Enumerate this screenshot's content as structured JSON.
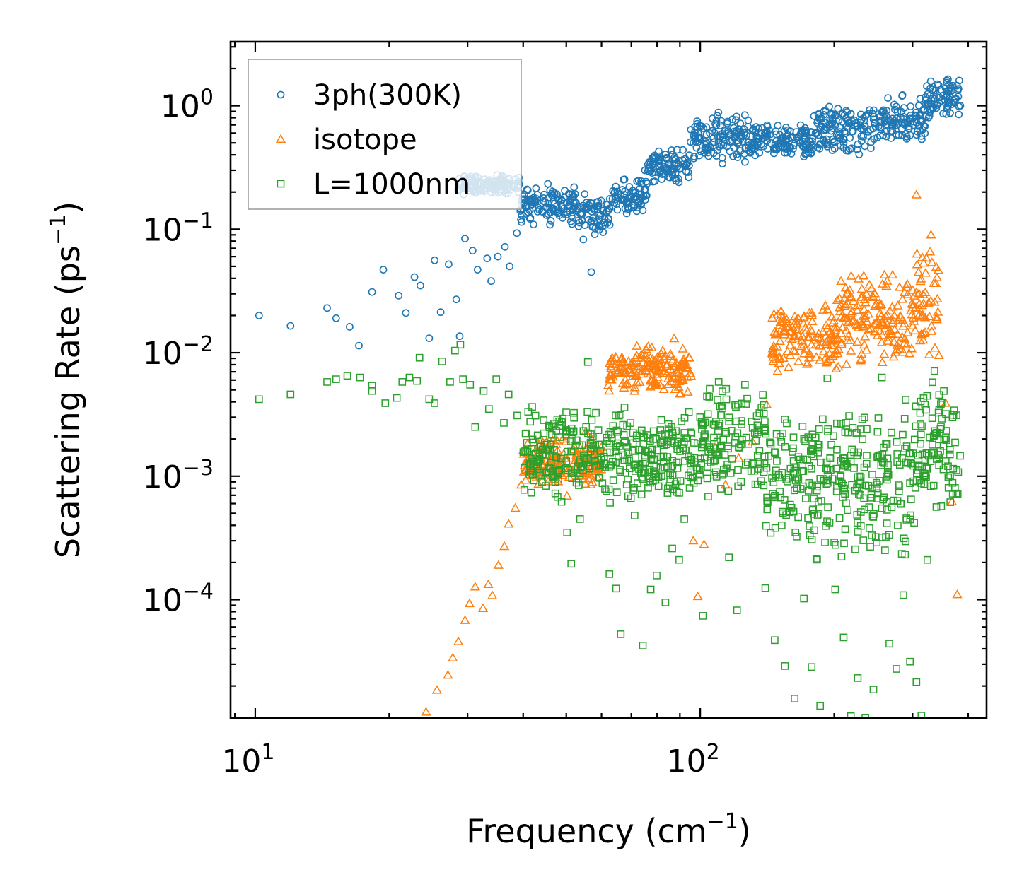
{
  "chart_data": {
    "type": "scatter",
    "title": "",
    "xscale": "log",
    "yscale": "log",
    "xlabel": {
      "main": "Frequency (cm",
      "sup": "−1",
      "close": ")"
    },
    "ylabel": {
      "main": "Scattering Rate (ps",
      "sup": "−1",
      "close": ")"
    },
    "xlim": [
      8.8,
      440
    ],
    "ylim": [
      1.1e-05,
      3.3
    ],
    "x_major_ticks": [
      {
        "value": 10,
        "base": "10",
        "exp": "1"
      },
      {
        "value": 100,
        "base": "10",
        "exp": "2"
      }
    ],
    "y_major_ticks": [
      {
        "value": 1,
        "base": "10",
        "exp": "0"
      },
      {
        "value": 0.1,
        "base": "10",
        "exp": "−1"
      },
      {
        "value": 0.01,
        "base": "10",
        "exp": "−2"
      },
      {
        "value": 0.001,
        "base": "10",
        "exp": "−3"
      },
      {
        "value": 0.0001,
        "base": "10",
        "exp": "−4"
      }
    ],
    "legend_position": "top-left",
    "series": [
      {
        "name": "3ph(300K)",
        "marker": "circle",
        "color": "#1f77b4",
        "points": [
          [
            10.2,
            0.02
          ],
          [
            12,
            0.0165
          ],
          [
            14.5,
            0.023
          ],
          [
            15.2,
            0.019
          ],
          [
            16.3,
            0.0162
          ],
          [
            17.1,
            0.0114
          ],
          [
            18.3,
            0.031
          ],
          [
            19.4,
            0.047
          ],
          [
            21,
            0.029
          ],
          [
            21.8,
            0.021
          ],
          [
            22.8,
            0.041
          ],
          [
            23.5,
            0.035
          ],
          [
            24.6,
            0.0131
          ],
          [
            25.3,
            0.056
          ],
          [
            26.1,
            0.0213
          ],
          [
            27.2,
            0.052
          ],
          [
            28.3,
            0.027
          ],
          [
            28.8,
            0.0136
          ],
          [
            29.6,
            0.084
          ],
          [
            30.8,
            0.067
          ],
          [
            31.6,
            0.047
          ],
          [
            33.2,
            0.058
          ],
          [
            33.9,
            0.038
          ],
          [
            35.1,
            0.06
          ],
          [
            36.4,
            0.072
          ],
          [
            37.3,
            0.05
          ],
          [
            38.7,
            0.093
          ],
          [
            40.8,
            0.21
          ],
          [
            42.3,
            0.18
          ],
          [
            45.1,
            0.15
          ],
          [
            48.2,
            0.13
          ],
          [
            51.5,
            0.11
          ],
          [
            54.6,
            0.0825
          ],
          [
            56.9,
            0.045
          ],
          [
            60.4,
            0.14
          ],
          [
            64.8,
            0.16
          ],
          [
            69.3,
            0.22
          ],
          [
            75.1,
            0.3
          ],
          [
            81,
            0.39
          ],
          [
            88.7,
            0.44
          ],
          [
            96.5,
            0.5
          ],
          [
            105,
            0.6
          ],
          [
            115,
            0.72
          ],
          [
            126,
            0.84
          ],
          [
            138,
            0.66
          ],
          [
            151,
            0.58
          ],
          [
            166,
            0.56
          ],
          [
            182,
            0.6
          ],
          [
            198,
            0.72
          ],
          [
            218,
            0.86
          ],
          [
            240,
            0.92
          ],
          [
            262,
            0.82
          ],
          [
            287,
            0.96
          ],
          [
            312,
            1.14
          ],
          [
            338,
            1.33
          ],
          [
            362,
            1.48
          ],
          [
            382,
            1.6
          ]
        ],
        "bands": [
          {
            "x": [
              28.5,
              39.4
            ],
            "lower": 0.18,
            "upper": 0.29
          },
          {
            "x": [
              39.4,
              52.5
            ],
            "lower": 0.1,
            "upper": 0.25
          },
          {
            "x": [
              52.5,
              63
            ],
            "lower": 0.085,
            "upper": 0.21
          },
          {
            "x": [
              63,
              76
            ],
            "lower": 0.12,
            "upper": 0.29
          },
          {
            "x": [
              76,
              95
            ],
            "lower": 0.22,
            "upper": 0.47
          },
          {
            "x": [
              95,
              130
            ],
            "lower": 0.3,
            "upper": 0.95
          },
          {
            "x": [
              130,
              180
            ],
            "lower": 0.33,
            "upper": 0.78
          },
          {
            "x": [
              180,
              250
            ],
            "lower": 0.34,
            "upper": 1.16
          },
          {
            "x": [
              250,
              320
            ],
            "lower": 0.43,
            "upper": 1.29
          },
          {
            "x": [
              320,
              386
            ],
            "lower": 0.71,
            "upper": 1.82
          }
        ]
      },
      {
        "name": "isotope",
        "marker": "triangle",
        "color": "#ff7f0e",
        "points": [
          [
            24.2,
            1.23e-05
          ],
          [
            25.6,
            1.85e-05
          ],
          [
            27.1,
            2.45e-05
          ],
          [
            27.8,
            3.38e-05
          ],
          [
            28.6,
            4.58e-05
          ],
          [
            29.6,
            6.8e-05
          ],
          [
            30.3,
            9.3e-05
          ],
          [
            31.2,
            0.000127
          ],
          [
            32.5,
            8.5e-05
          ],
          [
            33.4,
            0.000133
          ],
          [
            34.1,
            0.000108
          ],
          [
            35.2,
            0.00019
          ],
          [
            36.3,
            0.00027
          ],
          [
            37.1,
            0.00041
          ],
          [
            38.4,
            0.00055
          ],
          [
            39.6,
            0.00085
          ],
          [
            41.2,
            0.0011
          ],
          [
            43.1,
            0.0015
          ],
          [
            45.2,
            0.0019
          ],
          [
            47.8,
            0.0014
          ],
          [
            50.2,
            0.00069
          ],
          [
            52.8,
            0.0016
          ],
          [
            55.3,
            0.0023
          ],
          [
            58.1,
            0.0016
          ],
          [
            62.4,
            0.0049
          ],
          [
            66.3,
            0.0078
          ],
          [
            70.1,
            0.0079
          ],
          [
            74.5,
            0.0098
          ],
          [
            78.8,
            0.0058
          ],
          [
            83.1,
            0.0093
          ],
          [
            87.4,
            0.013
          ],
          [
            90.6,
            0.0078
          ],
          [
            93.8,
            0.0048
          ],
          [
            96.5,
            0.0003
          ],
          [
            98.7,
            0.000106
          ],
          [
            102,
            0.00028
          ],
          [
            108,
            0.0017
          ],
          [
            114,
            0.00085
          ],
          [
            122,
            0.0014
          ],
          [
            131,
            0.0019
          ],
          [
            141,
            0.0038
          ],
          [
            146,
            0.0092
          ],
          [
            155,
            0.014
          ],
          [
            166,
            0.019
          ],
          [
            178,
            0.021
          ],
          [
            191,
            0.024
          ],
          [
            202,
            0.0074
          ],
          [
            214,
            0.03
          ],
          [
            230,
            0.017
          ],
          [
            245,
            0.028
          ],
          [
            263,
            0.038
          ],
          [
            278,
            0.024
          ],
          [
            292,
            0.036
          ],
          [
            306,
            0.19
          ],
          [
            318,
            0.0143
          ],
          [
            330,
            0.09
          ],
          [
            344,
            0.0095
          ],
          [
            356,
            0.0039
          ],
          [
            368,
            0.00062
          ],
          [
            378,
            0.00011
          ]
        ],
        "bands": [
          {
            "x": [
              40,
              60
            ],
            "lower": 0.0007,
            "upper": 0.0025
          },
          {
            "x": [
              62,
              96
            ],
            "lower": 0.0042,
            "upper": 0.0125
          },
          {
            "x": [
              145,
              205
            ],
            "lower": 0.0058,
            "upper": 0.03
          },
          {
            "x": [
              205,
              300
            ],
            "lower": 0.0062,
            "upper": 0.052
          },
          {
            "x": [
              300,
              345
            ],
            "lower": 0.0085,
            "upper": 0.092
          }
        ]
      },
      {
        "name": "L=1000nm",
        "marker": "square",
        "color": "#2ca02c",
        "points": [
          [
            10.2,
            0.0042
          ],
          [
            12,
            0.0046
          ],
          [
            14.5,
            0.0058
          ],
          [
            15.2,
            0.0061
          ],
          [
            16.1,
            0.0065
          ],
          [
            17.2,
            0.0063
          ],
          [
            18.3,
            0.0054
          ],
          [
            18.3,
            0.0049
          ],
          [
            19.6,
            0.0039
          ],
          [
            20.8,
            0.0043
          ],
          [
            21.4,
            0.0058
          ],
          [
            22.2,
            0.0063
          ],
          [
            23.1,
            0.0059
          ],
          [
            23.4,
            0.0091
          ],
          [
            24.6,
            0.0042
          ],
          [
            25.3,
            0.0039
          ],
          [
            26.3,
            0.0085
          ],
          [
            27.4,
            0.0058
          ],
          [
            28.1,
            0.0104
          ],
          [
            28.9,
            0.0116
          ],
          [
            29.3,
            0.0061
          ],
          [
            30.4,
            0.0055
          ],
          [
            31.2,
            0.0025
          ],
          [
            32.6,
            0.0049
          ],
          [
            33.5,
            0.0035
          ],
          [
            34.8,
            0.0061
          ],
          [
            36.2,
            0.0027
          ],
          [
            37.1,
            0.0046
          ],
          [
            38.8,
            0.0031
          ],
          [
            40.5,
            0.0022
          ],
          [
            42.3,
            0.0012
          ],
          [
            44.1,
            0.0009
          ],
          [
            46.6,
            0.0011
          ],
          [
            48.8,
            0.00062
          ],
          [
            50.2,
            0.00035
          ],
          [
            51.3,
            0.000195
          ],
          [
            53.7,
            0.00045
          ],
          [
            55.9,
            0.0084
          ],
          [
            57.4,
            0.0021
          ],
          [
            59.2,
            0.00098
          ],
          [
            61.1,
            0.00079
          ],
          [
            62.5,
            0.000161
          ],
          [
            64.7,
            0.000123
          ],
          [
            66.3,
            5.25e-05
          ],
          [
            68.9,
            0.00069
          ],
          [
            71.2,
            0.00048
          ],
          [
            74.3,
            4.25e-05
          ],
          [
            77.4,
            0.000121
          ],
          [
            79.8,
            0.000157
          ],
          [
            83.5,
            9.5e-05
          ],
          [
            86.5,
            0.00026
          ],
          [
            89.7,
            0.00021
          ],
          [
            92.1,
            0.00045
          ],
          [
            96.8,
            0.0013
          ],
          [
            101.4,
            7.4e-05
          ],
          [
            105,
            0.0051
          ],
          [
            110,
            0.0058
          ],
          [
            116,
            0.00022
          ],
          [
            121,
            8.2e-05
          ],
          [
            126,
            0.0055
          ],
          [
            133,
            0.00086
          ],
          [
            140,
            0.000124
          ],
          [
            147,
            4.7e-05
          ],
          [
            155,
            2.9e-05
          ],
          [
            163,
            1.58e-05
          ],
          [
            171,
            0.000102
          ],
          [
            178,
            2.85e-05
          ],
          [
            186,
            1.38e-05
          ],
          [
            193,
            0.0062
          ],
          [
            201,
            0.000121
          ],
          [
            210,
            4.95e-05
          ],
          [
            218,
            1.14e-05
          ],
          [
            226,
            2.32e-05
          ],
          [
            235,
            1.1e-05
          ],
          [
            245,
            1.87e-05
          ],
          [
            256,
            0.0063
          ],
          [
            266,
            4.4e-05
          ],
          [
            276,
            2.75e-05
          ],
          [
            286,
            0.000109
          ],
          [
            296,
            3.15e-05
          ],
          [
            306,
            2.15e-05
          ],
          [
            314,
            1.15e-05
          ],
          [
            324,
            0.00021
          ],
          [
            336,
            0.0071
          ],
          [
            348,
            0.00057
          ],
          [
            364,
            0.0015
          ],
          [
            380,
            0.00108
          ]
        ],
        "bands": [
          {
            "x": [
              40,
              55
            ],
            "lower": 0.00055,
            "upper": 0.0052
          },
          {
            "x": [
              55,
              100
            ],
            "lower": 0.00048,
            "upper": 0.0041
          },
          {
            "x": [
              100,
              140
            ],
            "lower": 0.00056,
            "upper": 0.0066
          },
          {
            "x": [
              140,
              210
            ],
            "lower": 0.000145,
            "upper": 0.0063
          },
          {
            "x": [
              210,
              305
            ],
            "lower": 0.000118,
            "upper": 0.0061
          },
          {
            "x": [
              305,
              386
            ],
            "lower": 0.00043,
            "upper": 0.0076
          }
        ]
      }
    ]
  }
}
